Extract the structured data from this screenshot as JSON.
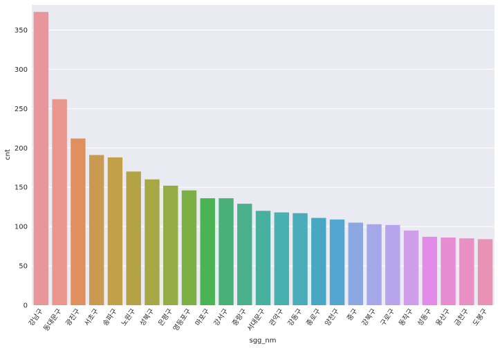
{
  "chart_data": {
    "type": "bar",
    "xlabel": "sgg_nm",
    "ylabel": "cnt",
    "ylim": [
      0,
      382
    ],
    "yticks": [
      0,
      50,
      100,
      150,
      200,
      250,
      300,
      350
    ],
    "grid": true,
    "categories": [
      "강남구",
      "동대문구",
      "광진구",
      "서초구",
      "송파구",
      "노원구",
      "성북구",
      "은평구",
      "영등포구",
      "마포구",
      "강서구",
      "중랑구",
      "서대문구",
      "관악구",
      "강동구",
      "종로구",
      "양천구",
      "중구",
      "강북구",
      "구로구",
      "동작구",
      "성동구",
      "용산구",
      "금천구",
      "도봉구"
    ],
    "values": [
      373,
      262,
      212,
      191,
      188,
      170,
      160,
      152,
      146,
      136,
      136,
      129,
      120,
      118,
      117,
      111,
      109,
      105,
      103,
      102,
      95,
      87,
      86,
      85,
      84
    ],
    "colors": [
      "#e8969a",
      "#e8968e",
      "#e0905e",
      "#c99a50",
      "#c2a04a",
      "#b3a345",
      "#a5a845",
      "#93ac45",
      "#7cb045",
      "#4ab454",
      "#4ab07a",
      "#4ab08c",
      "#48b09e",
      "#48b0ae",
      "#48acb9",
      "#48a8c4",
      "#52a6d0",
      "#8ca8e2",
      "#a4a8e8",
      "#b8a4ec",
      "#d09ee8",
      "#e28ce8",
      "#e68cd0",
      "#e890c4",
      "#e892b6"
    ]
  }
}
